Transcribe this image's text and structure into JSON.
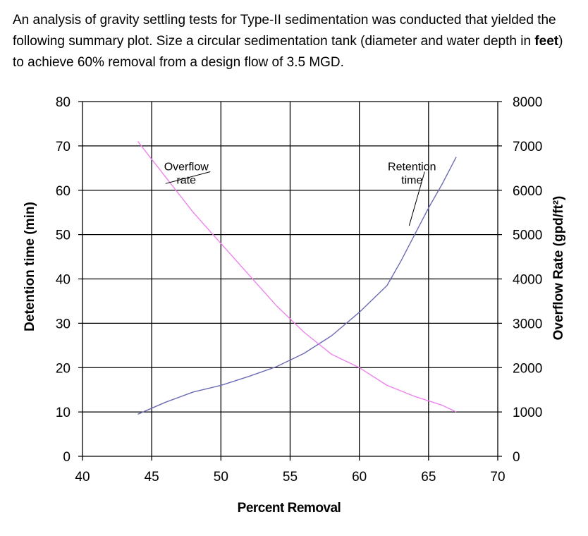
{
  "question": {
    "part1": "An analysis of gravity settling tests for Type-II sedimentation was conducted that yielded the following summary plot. Size a circular sedimentation tank (diameter and water depth in ",
    "bold": "feet",
    "part2": ") to achieve 60% removal from a design flow of 3.5 MGD."
  },
  "chart_data": {
    "type": "line",
    "xlabel": "Percent Removal",
    "ylabel_left": "Detention time (min)",
    "ylabel_right": "Overflow Rate (gpd/ft²)",
    "xlim": [
      40,
      70
    ],
    "ylim_left": [
      0,
      80
    ],
    "ylim_right": [
      0,
      8000
    ],
    "x_ticks": [
      40,
      45,
      50,
      55,
      60,
      65,
      70
    ],
    "y_left_ticks": [
      0,
      10,
      20,
      30,
      40,
      50,
      60,
      70,
      80
    ],
    "y_right_ticks": [
      0,
      1000,
      2000,
      3000,
      4000,
      5000,
      6000,
      7000,
      8000
    ],
    "grid": true,
    "series": [
      {
        "name": "Retention time",
        "axis": "left",
        "color": "#6b6bb5",
        "points": [
          [
            44,
            9.5
          ],
          [
            46,
            12.2
          ],
          [
            48,
            14.5
          ],
          [
            50,
            16.0
          ],
          [
            52,
            18.0
          ],
          [
            54,
            20.2
          ],
          [
            56,
            23.2
          ],
          [
            58,
            27.2
          ],
          [
            60,
            32.5
          ],
          [
            62,
            38.5
          ],
          [
            63,
            44.0
          ],
          [
            64,
            50.0
          ],
          [
            65,
            56.0
          ],
          [
            66,
            61.5
          ],
          [
            67,
            67.5
          ]
        ]
      },
      {
        "name": "Overflow rate",
        "axis": "right",
        "color": "#ee82ee",
        "points": [
          [
            44,
            7100
          ],
          [
            46,
            6300
          ],
          [
            48,
            5500
          ],
          [
            50,
            4800
          ],
          [
            52,
            4100
          ],
          [
            54,
            3400
          ],
          [
            56,
            2800
          ],
          [
            58,
            2300
          ],
          [
            60,
            2000
          ],
          [
            62,
            1600
          ],
          [
            64,
            1350
          ],
          [
            66,
            1150
          ],
          [
            67,
            1000
          ]
        ]
      }
    ],
    "annotations": [
      {
        "lines": [
          "Overflow",
          "rate"
        ],
        "at": [
          47.5,
          64.5
        ],
        "pointer_to": [
          46.0,
          61.5
        ]
      },
      {
        "lines": [
          "Retention",
          "time"
        ],
        "at": [
          63.8,
          64.5
        ],
        "pointer_to": [
          63.6,
          52.0
        ]
      }
    ]
  }
}
